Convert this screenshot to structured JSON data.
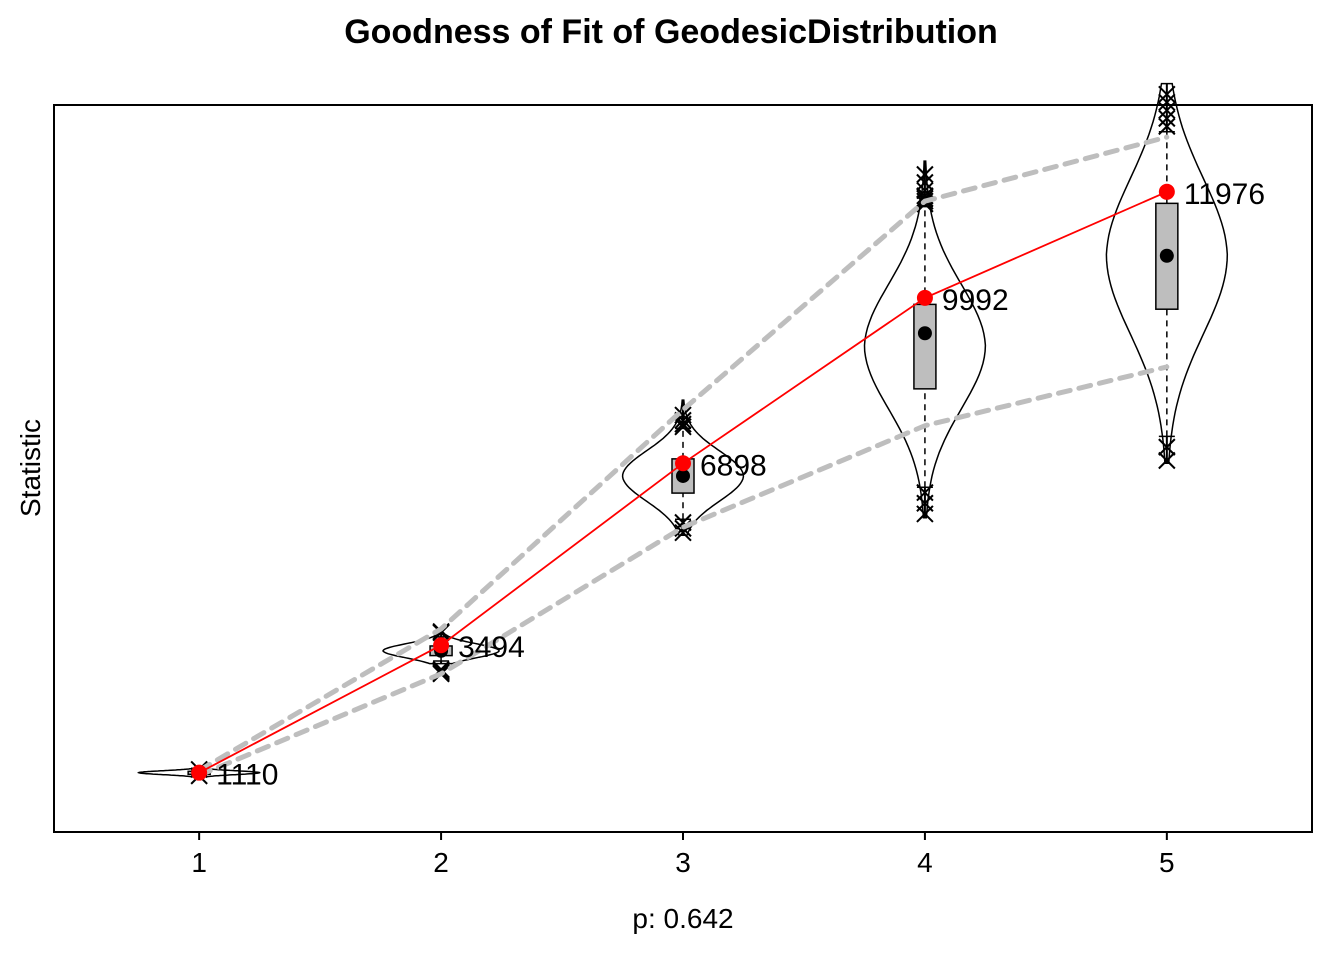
{
  "chart_data": {
    "type": "violin",
    "title": "Goodness of Fit of GeodesicDistribution",
    "xlabel": "p: 0.642",
    "ylabel": "Statistic",
    "categories": [
      "1",
      "2",
      "3",
      "4",
      "5"
    ],
    "xlim": [
      0.4,
      5.6
    ],
    "ylim": [
      0,
      13600
    ],
    "y_ticks_shown": false,
    "grid": false,
    "observed": {
      "values": [
        1110,
        3494,
        6898,
        9992,
        11976
      ],
      "labels": [
        "1110",
        "3494",
        "6898",
        "9992",
        "11976"
      ],
      "color": "#ff0000"
    },
    "simulated": [
      {
        "x": 1,
        "median": 1110,
        "q1": 1085,
        "q3": 1135,
        "whisker_low": 1060,
        "whisker_high": 1160,
        "min": 1030,
        "max": 1190,
        "violin_half_width": 0.25,
        "outliers": [
          1050,
          1170
        ]
      },
      {
        "x": 2,
        "median": 3390,
        "q1": 3300,
        "q3": 3480,
        "whisker_low": 3200,
        "whisker_high": 3650,
        "min": 3150,
        "max": 3800,
        "violin_half_width": 0.24,
        "outliers": [
          2960,
          2980,
          3000,
          3020,
          3040,
          3730,
          3750
        ]
      },
      {
        "x": 3,
        "median": 6660,
        "q1": 6340,
        "q3": 6980,
        "whisker_low": 5850,
        "whisker_high": 7550,
        "min": 5550,
        "max": 8080,
        "violin_half_width": 0.25,
        "outliers": [
          5790,
          5680,
          5600,
          7580,
          7630,
          7700,
          7800
        ]
      },
      {
        "x": 4,
        "median": 9330,
        "q1": 8290,
        "q3": 9870,
        "whisker_low": 6450,
        "whisker_high": 11700,
        "min": 5880,
        "max": 12550,
        "violin_half_width": 0.25,
        "outliers": [
          6350,
          6150,
          5950,
          11750,
          11800,
          11850,
          11900,
          12000,
          12150,
          12300
        ]
      },
      {
        "x": 5,
        "median": 10780,
        "q1": 9780,
        "q3": 11760,
        "whisker_low": 7400,
        "whisker_high": 13100,
        "min": 6900,
        "max": 14000,
        "violin_half_width": 0.25,
        "outliers": [
          7200,
          6950,
          13200,
          13350,
          13500,
          13650,
          13800
        ]
      }
    ],
    "envelope": {
      "upper": [
        1150,
        3800,
        7900,
        11800,
        13000
      ],
      "lower": [
        1060,
        2960,
        5700,
        7600,
        8700
      ],
      "color": "#bebebe",
      "style": "dashed"
    },
    "box_fill": "#bebebe",
    "median_marker": "filled-circle",
    "outlier_marker": "cross"
  }
}
